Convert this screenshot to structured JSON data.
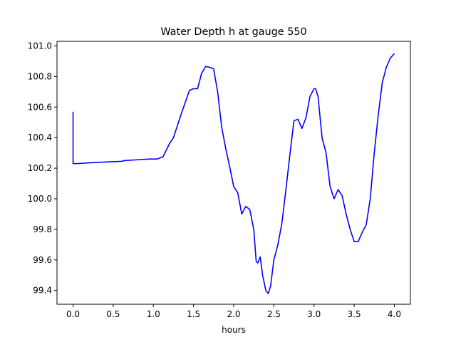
{
  "chart_data": {
    "type": "line",
    "title": "Water Depth h at gauge 550",
    "xlabel": "hours",
    "ylabel": "",
    "xlim": [
      -0.2,
      4.2
    ],
    "ylim": [
      99.31,
      101.03
    ],
    "xticks": [
      0.0,
      0.5,
      1.0,
      1.5,
      2.0,
      2.5,
      3.0,
      3.5,
      4.0
    ],
    "xtick_labels": [
      "0.0",
      "0.5",
      "1.0",
      "1.5",
      "2.0",
      "2.5",
      "3.0",
      "3.5",
      "4.0"
    ],
    "yticks": [
      99.4,
      99.6,
      99.8,
      100.0,
      100.2,
      100.4,
      100.6,
      100.8,
      101.0
    ],
    "ytick_labels": [
      "99.4",
      "99.6",
      "99.8",
      "100.0",
      "100.2",
      "100.4",
      "100.6",
      "100.8",
      "101.0"
    ],
    "grid": false,
    "series": [
      {
        "color": "#0000ff",
        "x": [
          0.0,
          0.0,
          0.05,
          0.2,
          0.4,
          0.6,
          0.65,
          0.8,
          0.95,
          1.05,
          1.12,
          1.2,
          1.25,
          1.35,
          1.45,
          1.5,
          1.55,
          1.6,
          1.65,
          1.7,
          1.75,
          1.8,
          1.85,
          1.9,
          1.95,
          2.0,
          2.05,
          2.1,
          2.15,
          2.2,
          2.25,
          2.28,
          2.3,
          2.33,
          2.36,
          2.4,
          2.43,
          2.46,
          2.5,
          2.55,
          2.6,
          2.65,
          2.7,
          2.75,
          2.8,
          2.85,
          2.9,
          2.95,
          3.0,
          3.02,
          3.05,
          3.1,
          3.15,
          3.2,
          3.25,
          3.3,
          3.35,
          3.4,
          3.45,
          3.5,
          3.55,
          3.6,
          3.65,
          3.7,
          3.75,
          3.8,
          3.85,
          3.9,
          3.95,
          4.0
        ],
        "y": [
          100.57,
          100.23,
          100.23,
          100.235,
          100.24,
          100.245,
          100.25,
          100.255,
          100.26,
          100.26,
          100.275,
          100.36,
          100.4,
          100.56,
          100.71,
          100.72,
          100.72,
          100.82,
          100.865,
          100.86,
          100.85,
          100.7,
          100.47,
          100.33,
          100.21,
          100.08,
          100.04,
          99.9,
          99.95,
          99.93,
          99.8,
          99.59,
          99.58,
          99.62,
          99.5,
          99.4,
          99.38,
          99.43,
          99.6,
          99.7,
          99.84,
          100.06,
          100.29,
          100.51,
          100.52,
          100.46,
          100.53,
          100.67,
          100.72,
          100.72,
          100.67,
          100.4,
          100.3,
          100.08,
          100.0,
          100.06,
          100.02,
          99.9,
          99.8,
          99.72,
          99.72,
          99.78,
          99.83,
          100.0,
          100.3,
          100.55,
          100.76,
          100.86,
          100.92,
          100.95
        ]
      }
    ]
  }
}
